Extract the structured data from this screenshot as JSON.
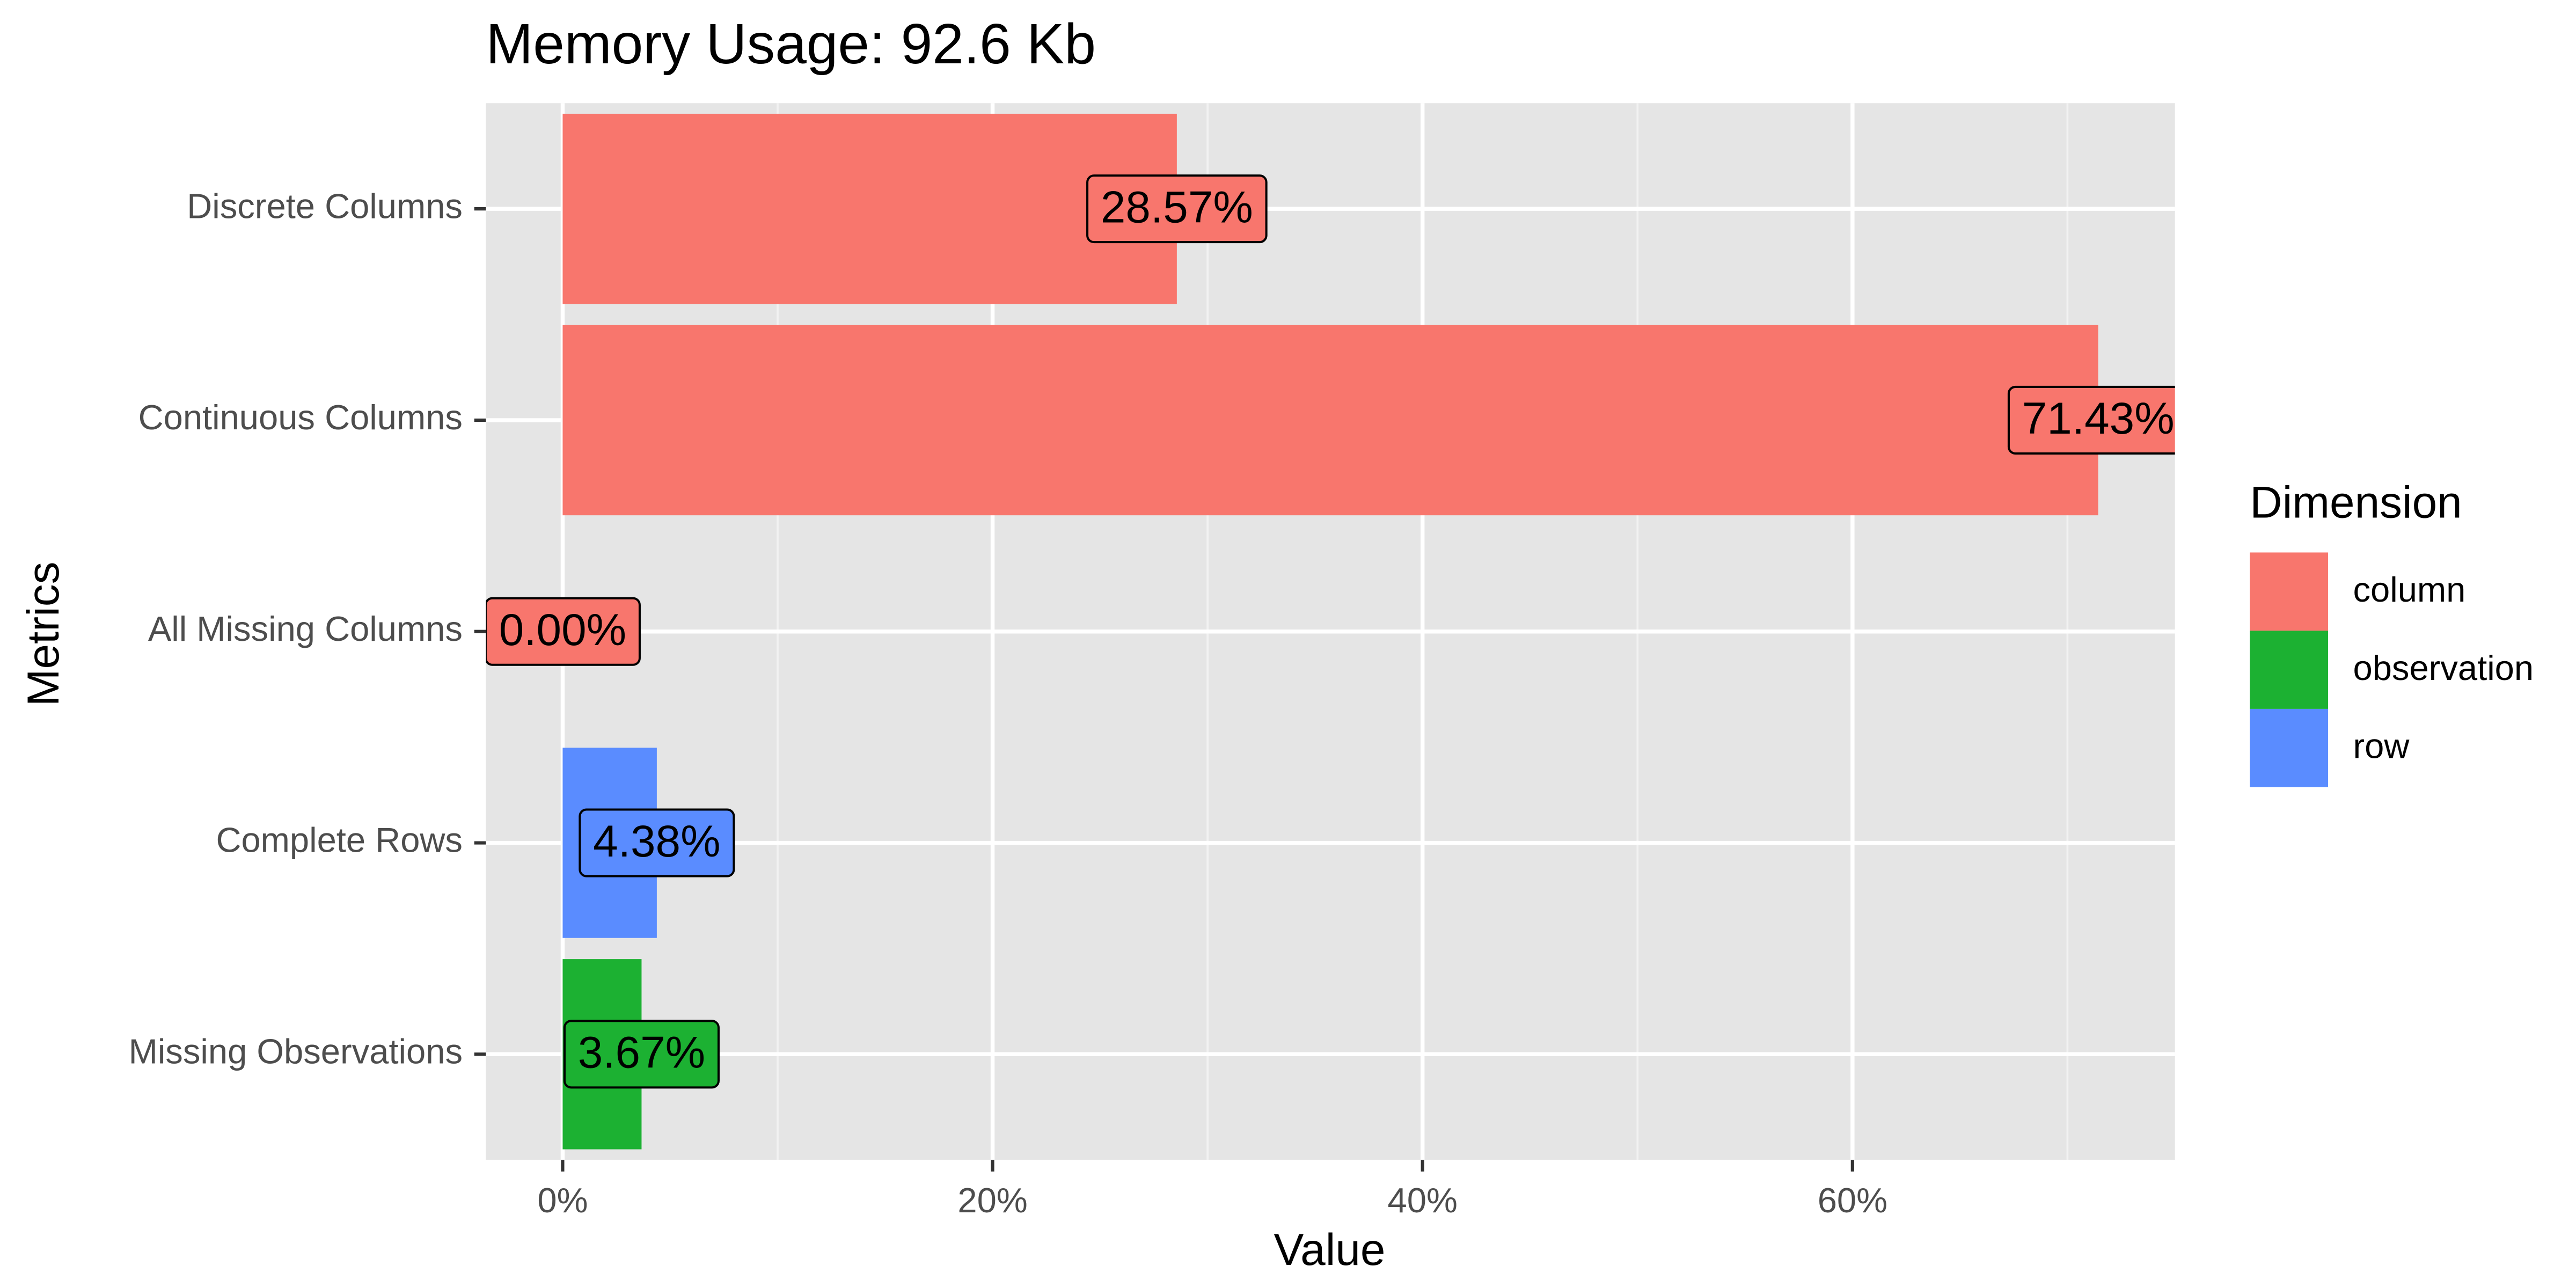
{
  "chart_data": {
    "type": "hbar",
    "title": "Memory Usage: 92.6 Kb",
    "x_label": "Value",
    "y_label": "Metrics",
    "legend_title": "Dimension",
    "legend_position": "right",
    "categories": [
      "Discrete Columns",
      "Continuous Columns",
      "All Missing Columns",
      "Complete Rows",
      "Missing Observations"
    ],
    "series": [
      {
        "name": "column",
        "color": "#f8766d",
        "values": [
          28.57,
          71.43,
          0,
          null,
          null
        ],
        "value_labels": [
          "28.57%",
          "71.43%",
          "0.00%",
          null,
          null
        ]
      },
      {
        "name": "observation",
        "color": "#1cb132",
        "values": [
          null,
          null,
          null,
          null,
          3.67
        ],
        "value_labels": [
          null,
          null,
          null,
          null,
          "3.67%"
        ]
      },
      {
        "name": "row",
        "color": "#5a8cff",
        "values": [
          null,
          null,
          null,
          4.38,
          null
        ],
        "value_labels": [
          null,
          null,
          null,
          "4.38%",
          null
        ]
      }
    ],
    "xlim": [
      -3.57,
      75.0
    ],
    "xticks": [
      {
        "value": 0,
        "label": "0%"
      },
      {
        "value": 20,
        "label": "20%"
      },
      {
        "value": 40,
        "label": "40%"
      },
      {
        "value": 60,
        "label": "60%"
      }
    ],
    "x_minor_grid": [
      10,
      30,
      50,
      70
    ],
    "grid": true
  }
}
